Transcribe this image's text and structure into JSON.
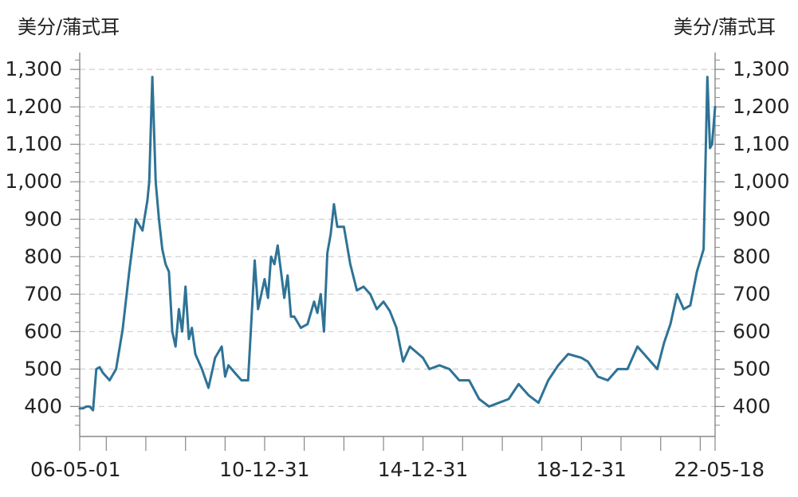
{
  "chart_data": {
    "type": "line",
    "title": "",
    "xlabel": "",
    "ylabel_left": "美分/蒲式耳",
    "ylabel_right": "美分/蒲式耳",
    "x_tick_labels": [
      "06-05-01",
      "10-12-31",
      "14-12-31",
      "18-12-31",
      "22-05-18"
    ],
    "x_range": [
      "2006-05-01",
      "2022-05-18"
    ],
    "ylim": [
      320,
      1345
    ],
    "y_ticks": [
      400,
      500,
      600,
      700,
      800,
      900,
      1000,
      1100,
      1200,
      1300
    ],
    "y_tick_labels": [
      "400",
      "500",
      "600",
      "700",
      "800",
      "900",
      "1,000",
      "1,100",
      "1,200",
      "1,300"
    ],
    "grid": "horizontal dashed",
    "series_color": "#2e7396",
    "series": [
      {
        "x": [
          "2006-05-01",
          "2006-06-01",
          "2006-07-01",
          "2006-08-01",
          "2006-09-01",
          "2006-10-01",
          "2006-11-01",
          "2006-12-01",
          "2007-02-01",
          "2007-04-01",
          "2007-06-01",
          "2007-08-01",
          "2007-10-01",
          "2007-12-01",
          "2008-01-15",
          "2008-02-01",
          "2008-03-01",
          "2008-04-01",
          "2008-05-01",
          "2008-06-01",
          "2008-07-01",
          "2008-08-01",
          "2008-09-01",
          "2008-10-01",
          "2008-11-01",
          "2008-12-01",
          "2009-01-01",
          "2009-02-01",
          "2009-03-01",
          "2009-04-01",
          "2009-06-01",
          "2009-08-01",
          "2009-10-01",
          "2009-12-01",
          "2010-01-01",
          "2010-02-01",
          "2010-04-01",
          "2010-06-01",
          "2010-08-01",
          "2010-10-01",
          "2010-11-01",
          "2010-12-31",
          "2011-02-01",
          "2011-03-01",
          "2011-04-01",
          "2011-05-01",
          "2011-06-01",
          "2011-07-01",
          "2011-08-01",
          "2011-09-01",
          "2011-10-01",
          "2011-12-01",
          "2012-02-01",
          "2012-04-01",
          "2012-05-01",
          "2012-06-01",
          "2012-07-01",
          "2012-08-01",
          "2012-09-01",
          "2012-10-01",
          "2012-11-01",
          "2013-01-01",
          "2013-03-01",
          "2013-05-01",
          "2013-07-01",
          "2013-09-01",
          "2013-11-01",
          "2014-01-01",
          "2014-03-01",
          "2014-05-01",
          "2014-07-01",
          "2014-09-01",
          "2014-12-31",
          "2015-03-01",
          "2015-06-01",
          "2015-09-01",
          "2015-12-01",
          "2016-03-01",
          "2016-06-01",
          "2016-09-01",
          "2016-12-01",
          "2017-03-01",
          "2017-06-01",
          "2017-09-01",
          "2017-12-01",
          "2018-03-01",
          "2018-06-01",
          "2018-09-01",
          "2018-12-31",
          "2019-03-01",
          "2019-06-01",
          "2019-09-01",
          "2019-12-01",
          "2020-03-01",
          "2020-06-01",
          "2020-08-01",
          "2020-10-01",
          "2020-12-01",
          "2021-02-01",
          "2021-04-01",
          "2021-06-01",
          "2021-08-01",
          "2021-10-01",
          "2021-12-01",
          "2022-02-01",
          "2022-03-08",
          "2022-04-01",
          "2022-04-20",
          "2022-05-18"
        ],
        "values": [
          395,
          395,
          400,
          400,
          390,
          500,
          505,
          490,
          470,
          500,
          605,
          760,
          900,
          870,
          950,
          1000,
          1280,
          1000,
          900,
          820,
          780,
          760,
          600,
          560,
          660,
          600,
          720,
          580,
          610,
          540,
          500,
          450,
          530,
          560,
          480,
          510,
          490,
          470,
          470,
          790,
          660,
          740,
          690,
          800,
          780,
          830,
          760,
          690,
          750,
          640,
          640,
          610,
          620,
          680,
          650,
          700,
          600,
          810,
          860,
          940,
          880,
          880,
          780,
          710,
          720,
          700,
          660,
          680,
          655,
          610,
          520,
          560,
          530,
          500,
          510,
          500,
          470,
          470,
          420,
          400,
          410,
          420,
          460,
          430,
          410,
          470,
          510,
          540,
          530,
          520,
          480,
          470,
          500,
          500,
          560,
          540,
          520,
          500,
          570,
          620,
          700,
          660,
          670,
          760,
          820,
          1280,
          1090,
          1100,
          1200
        ]
      }
    ]
  }
}
